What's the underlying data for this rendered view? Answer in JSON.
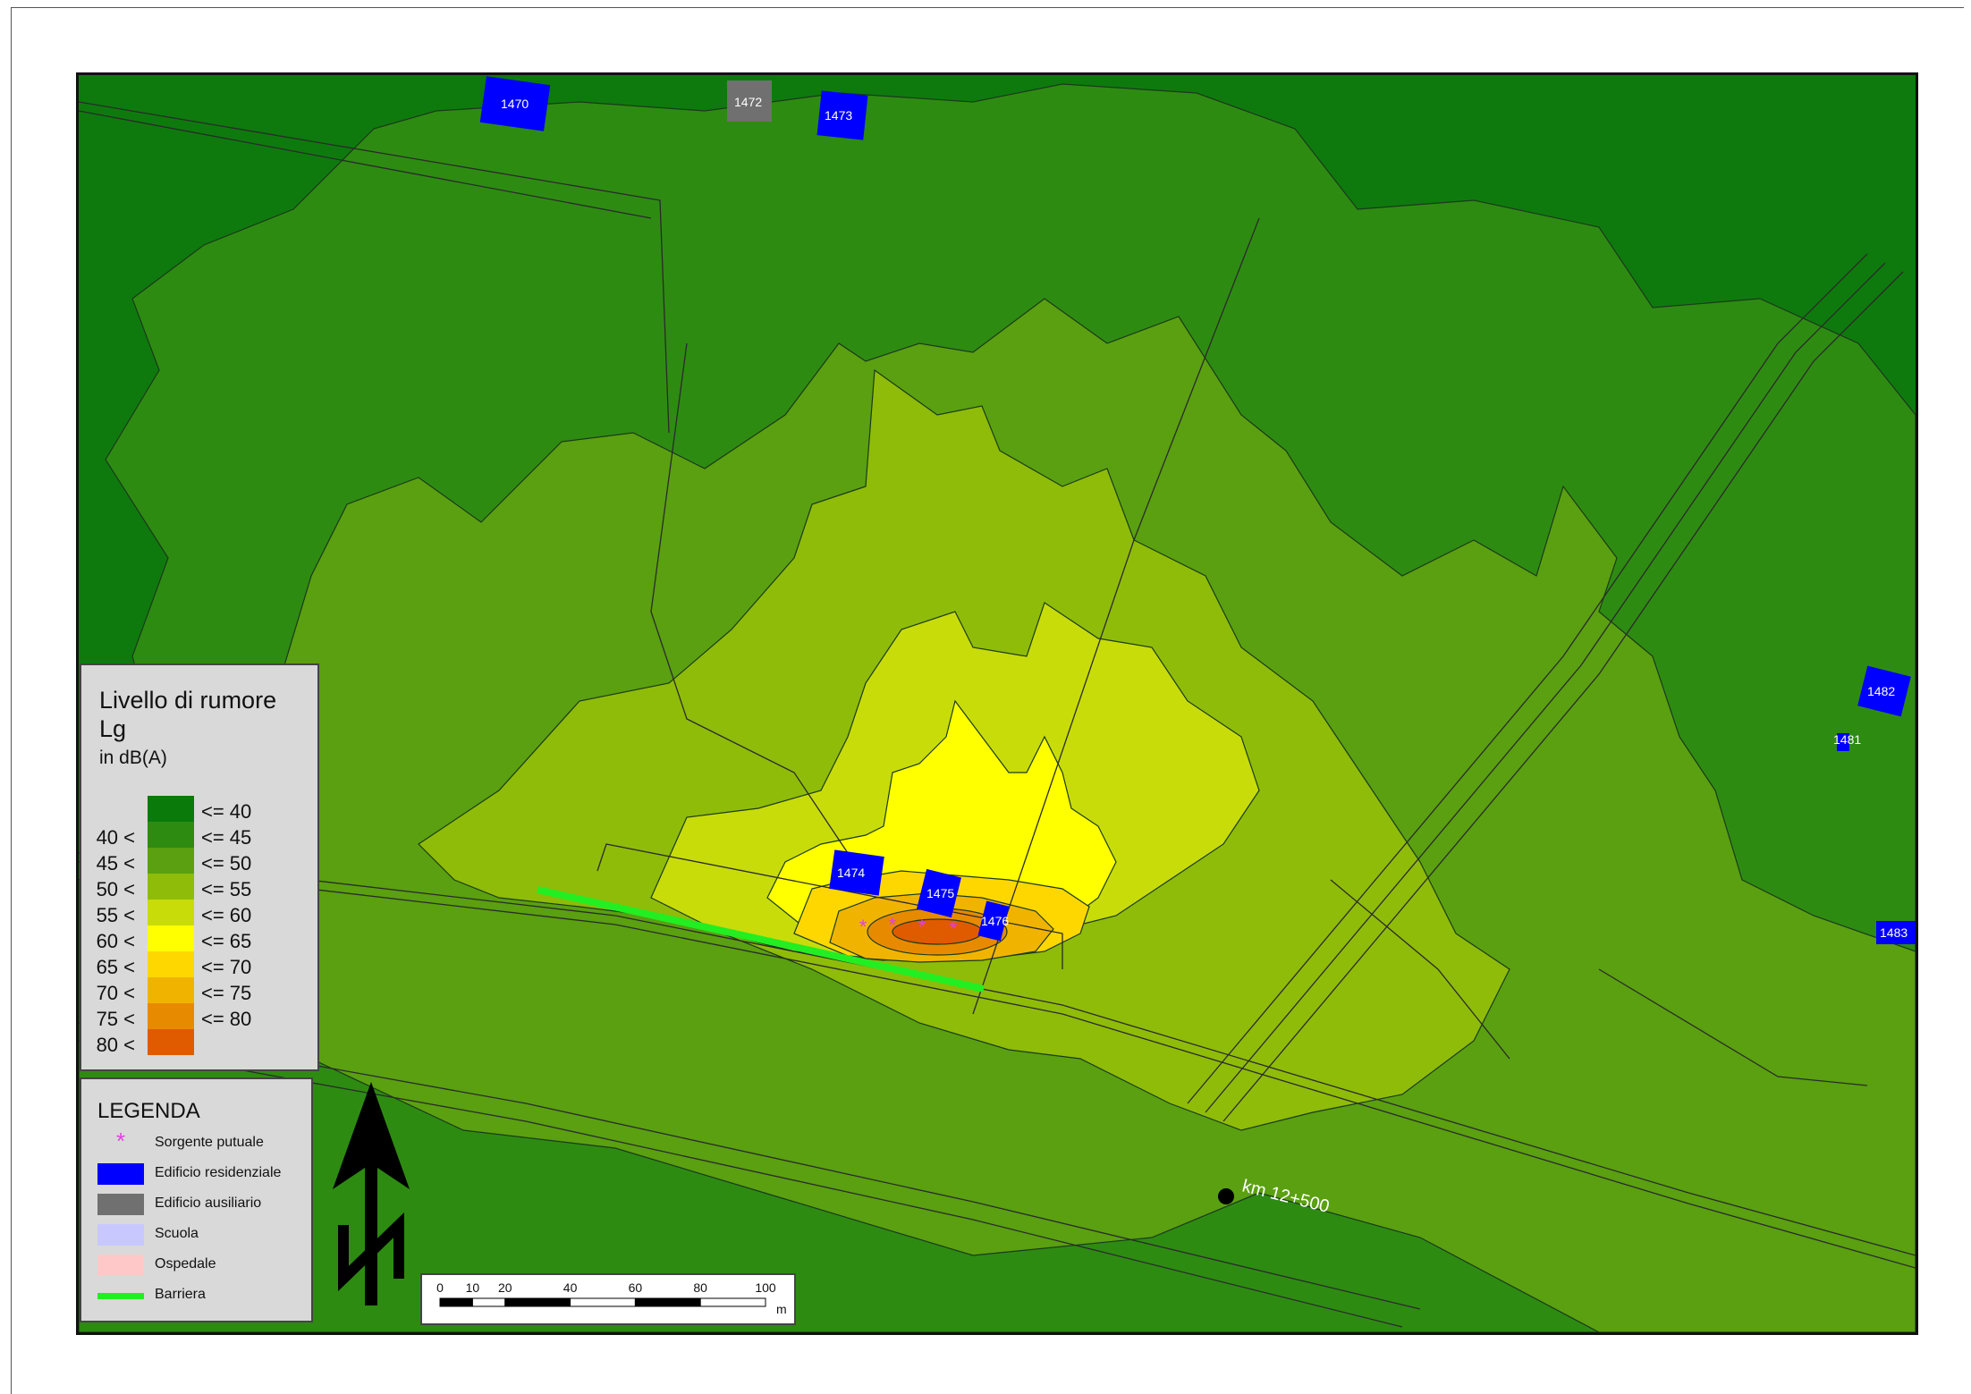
{
  "map": {
    "buildings": [
      {
        "id": "1470",
        "kind": "residenziale"
      },
      {
        "id": "1472",
        "kind": "ausiliario"
      },
      {
        "id": "1473",
        "kind": "residenziale"
      },
      {
        "id": "1474",
        "kind": "residenziale"
      },
      {
        "id": "1475",
        "kind": "residenziale"
      },
      {
        "id": "1476",
        "kind": "residenziale"
      },
      {
        "id": "1481",
        "kind": "residenziale"
      },
      {
        "id": "1482",
        "kind": "residenziale"
      },
      {
        "id": "1483",
        "kind": "residenziale"
      }
    ],
    "km_marker": "km 12+500"
  },
  "noise_legend": {
    "title": "Livello di rumore",
    "subtitle": "Lg",
    "unit": "in dB(A)",
    "classes": [
      {
        "low": "",
        "high": "<= 40",
        "color": "#0a7a0a"
      },
      {
        "low": "40 <",
        "high": "<= 45",
        "color": "#2e8b12"
      },
      {
        "low": "45 <",
        "high": "<= 50",
        "color": "#5aa010"
      },
      {
        "low": "50 <",
        "high": "<= 55",
        "color": "#8fbc08"
      },
      {
        "low": "55 <",
        "high": "<= 60",
        "color": "#c8dc0a"
      },
      {
        "low": "60 <",
        "high": "<= 65",
        "color": "#ffff00"
      },
      {
        "low": "65 <",
        "high": "<= 70",
        "color": "#ffd700"
      },
      {
        "low": "70 <",
        "high": "<= 75",
        "color": "#f0b400"
      },
      {
        "low": "75 <",
        "high": "<= 80",
        "color": "#e88a00"
      },
      {
        "low": "80 <",
        "high": "",
        "color": "#e05a00"
      }
    ]
  },
  "symbol_legend": {
    "title": "LEGENDA",
    "items": [
      {
        "label": "Sorgente putuale",
        "symbol": "asterisk",
        "color": "#e040e0"
      },
      {
        "label": "Edificio residenziale",
        "symbol": "box",
        "color": "#0000ff"
      },
      {
        "label": "Edificio ausiliario",
        "symbol": "box",
        "color": "#707070"
      },
      {
        "label": "Scuola",
        "symbol": "box",
        "color": "#c8c8ff"
      },
      {
        "label": "Ospedale",
        "symbol": "box",
        "color": "#ffc8c8"
      },
      {
        "label": "Barriera",
        "symbol": "line",
        "color": "#22ee22"
      }
    ]
  },
  "scale_bar": {
    "ticks": [
      "0",
      "10",
      "20",
      "40",
      "60",
      "80",
      "100"
    ],
    "tick_values": [
      0,
      10,
      20,
      40,
      60,
      80,
      100
    ],
    "unit": "m"
  },
  "north_arrow": {
    "label": "N"
  }
}
